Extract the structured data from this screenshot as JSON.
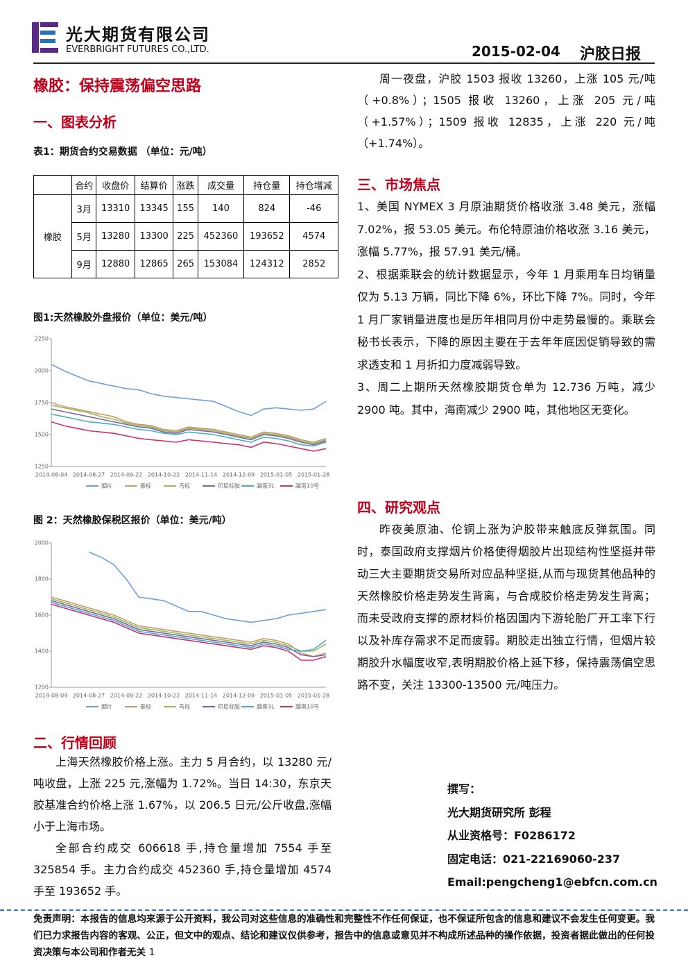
{
  "header": {
    "company_cn": "光大期货有限公司",
    "company_en": "EVERBRIGHT FUTURES CO.,LTD.",
    "date": "2015-02-04",
    "report": "沪胶日报"
  },
  "title": "橡胶：保持震荡偏空思路",
  "section1": {
    "heading": "一、图表分析",
    "table_caption": "表1：期货合约交易数据 （单位：元/吨）"
  },
  "table": {
    "columns": [
      "合约",
      "收盘价",
      "结算价",
      "涨跌",
      "成交量",
      "持仓量",
      "持仓增减"
    ],
    "group": "橡胶",
    "rows": [
      [
        "3月",
        13310,
        13345,
        155,
        140,
        824,
        -46
      ],
      [
        "5月",
        13280,
        13300,
        225,
        452360,
        193652,
        4574
      ],
      [
        "9月",
        12880,
        12865,
        265,
        153084,
        124312,
        2852
      ]
    ]
  },
  "chart_data": [
    {
      "type": "line",
      "title": "图1:天然橡胶外盘报价（单位：美元/吨）",
      "categories": [
        "2014-08-04",
        null,
        null,
        "2014-08-27",
        null,
        null,
        "2014-09-22",
        null,
        null,
        "2014-10-22",
        null,
        null,
        "2014-11-14",
        null,
        null,
        "2014-12-09",
        null,
        null,
        "2015-01-05",
        null,
        null,
        "2015-01-28",
        null
      ],
      "ylim": [
        1250,
        2250
      ],
      "yticks": [
        1250,
        1500,
        1750,
        2000,
        2250
      ],
      "series": [
        {
          "name": "烟片",
          "color": "#6f9fd8",
          "values": [
            2050,
            2000,
            1960,
            1920,
            1900,
            1880,
            1860,
            1850,
            1820,
            1800,
            1790,
            1780,
            1770,
            1760,
            1720,
            1680,
            1650,
            1700,
            1710,
            1700,
            1690,
            1700,
            1760
          ]
        },
        {
          "name": "泰标",
          "color": "#c89a6a",
          "values": [
            1750,
            1720,
            1700,
            1680,
            1660,
            1640,
            1600,
            1580,
            1570,
            1540,
            1530,
            1560,
            1550,
            1540,
            1520,
            1500,
            1480,
            1520,
            1510,
            1490,
            1460,
            1440,
            1470
          ]
        },
        {
          "name": "马标",
          "color": "#9bbb59",
          "values": [
            1730,
            1710,
            1690,
            1670,
            1640,
            1620,
            1590,
            1570,
            1560,
            1530,
            1520,
            1550,
            1540,
            1530,
            1510,
            1490,
            1470,
            1510,
            1500,
            1480,
            1450,
            1430,
            1460
          ]
        },
        {
          "name": "印尼标胶",
          "color": "#8064a2",
          "values": [
            1700,
            1680,
            1660,
            1640,
            1620,
            1600,
            1580,
            1560,
            1550,
            1520,
            1510,
            1540,
            1530,
            1520,
            1500,
            1480,
            1460,
            1500,
            1490,
            1470,
            1440,
            1420,
            1450
          ]
        },
        {
          "name": "越南3L",
          "color": "#4bacc6",
          "values": [
            1660,
            1640,
            1620,
            1600,
            1590,
            1580,
            1560,
            1540,
            1530,
            1510,
            1500,
            1520,
            1510,
            1500,
            1480,
            1460,
            1440,
            1480,
            1470,
            1450,
            1420,
            1410,
            1440
          ]
        },
        {
          "name": "越南10号",
          "color": "#d0306f",
          "values": [
            1600,
            1570,
            1550,
            1530,
            1520,
            1510,
            1490,
            1470,
            1460,
            1450,
            1440,
            1460,
            1450,
            1440,
            1430,
            1420,
            1400,
            1440,
            1430,
            1410,
            1390,
            1370,
            1390
          ]
        }
      ]
    },
    {
      "type": "line",
      "title": "图 2：天然橡胶保税区报价（单位：美元/吨）",
      "categories": [
        "2014-08-04",
        null,
        null,
        "2014-08-27",
        null,
        null,
        "2014-09-22",
        null,
        null,
        "2014-10-22",
        null,
        null,
        "2014-11-14",
        null,
        null,
        "2014-12-09",
        null,
        null,
        "2015-01-05",
        null,
        null,
        "2015-01-28",
        null
      ],
      "ylim": [
        1200,
        2000
      ],
      "yticks": [
        1200,
        1400,
        1600,
        1800,
        2000
      ],
      "series": [
        {
          "name": "烟片",
          "color": "#6f9fd8",
          "values": [
            null,
            null,
            null,
            1950,
            1920,
            1880,
            1800,
            1700,
            1690,
            1680,
            1650,
            1620,
            1620,
            1600,
            1580,
            1570,
            1560,
            1570,
            1580,
            1600,
            1610,
            1620,
            1630
          ]
        },
        {
          "name": "泰标",
          "color": "#c89a6a",
          "values": [
            1700,
            1680,
            1660,
            1640,
            1620,
            1600,
            1570,
            1540,
            1530,
            1520,
            1510,
            1500,
            1490,
            1480,
            1470,
            1460,
            1450,
            1470,
            1460,
            1440,
            1390,
            1370,
            1390
          ]
        },
        {
          "name": "马标",
          "color": "#9bbb59",
          "values": [
            1690,
            1670,
            1650,
            1630,
            1610,
            1590,
            1560,
            1530,
            1520,
            1510,
            1500,
            1490,
            1480,
            1470,
            1460,
            1450,
            1440,
            1460,
            1450,
            1430,
            1400,
            1400,
            1440
          ]
        },
        {
          "name": "印尼标胶",
          "color": "#8064a2",
          "values": [
            1680,
            1660,
            1640,
            1620,
            1600,
            1580,
            1550,
            1520,
            1510,
            1500,
            1490,
            1480,
            1470,
            1460,
            1450,
            1440,
            1430,
            1450,
            1440,
            1420,
            1380,
            1370,
            1380
          ]
        },
        {
          "name": "越南3L",
          "color": "#4bacc6",
          "values": [
            1670,
            1650,
            1630,
            1610,
            1590,
            1570,
            1540,
            1510,
            1500,
            1490,
            1480,
            1470,
            1460,
            1450,
            1440,
            1430,
            1420,
            1440,
            1430,
            1410,
            1400,
            1410,
            1460
          ]
        },
        {
          "name": "越南10号",
          "color": "#d0306f",
          "values": [
            1660,
            1640,
            1620,
            1600,
            1580,
            1560,
            1530,
            1500,
            1490,
            1480,
            1470,
            1460,
            1450,
            1440,
            1430,
            1420,
            1410,
            1430,
            1420,
            1400,
            1350,
            1350,
            1370
          ]
        }
      ]
    }
  ],
  "section2": {
    "heading": "二、行情回顾",
    "paragraphs": [
      "上海天然橡胶价格上涨。主力 5 月合约，以 13280 元/吨收盘，上涨 225 元,涨幅为 1.72%。当日 14:30，东京天胶基准合约价格上涨 1.67%，以 206.5 日元/公斤收盘,涨幅小于上海市场。",
      "全部合约成交 606618 手,持仓量增加 7554 手至 325854 手。主力合约成交 452360 手,持仓量增加 4574 手至 193652 手。"
    ]
  },
  "night": "周一夜盘，沪胶 1503 报收 13260，上涨 105 元/吨（+0.8%）；1505 报收 13260，上涨 205 元/吨（+1.57%）；1509 报收 12835，上涨 220 元/吨（+1.74%）。",
  "section3": {
    "heading": "三、市场焦点",
    "items": [
      "1、美国 NYMEX 3 月原油期货价格收涨 3.48 美元，涨幅 7.02%，报 53.05 美元。布伦特原油价格收涨 3.16 美元，涨幅 5.77%，报 57.91 美元/桶。",
      "2、根据乘联会的统计数据显示，今年 1 月乘用车日均销量仅为 5.13 万辆，同比下降 6%，环比下降 7%。同时，今年 1 月厂家销量进度也是历年相同月份中走势最慢的。乘联会秘书长表示，下降的原因主要在于去年年底因促销导致的需求透支和 1 月折扣力度减弱导致。",
      "3、周二上期所天然橡胶期货仓单为 12.736 万吨，减少 2900 吨。其中，海南减少 2900 吨，其他地区无变化。"
    ]
  },
  "section4": {
    "heading": "四、研究观点",
    "paragraphs": [
      "昨夜美原油、伦铜上涨为沪胶带来触底反弹氛围。同时，泰国政府支撑烟片价格使得烟胶片出现结构性坚挺并带动三大主要期货交易所对应品种坚挺,从而与现货其他品种的天然橡胶价格走势发生背离，与合成胶价格走势发生背离；而未受政府支撑的原材料价格因国内下游轮胎厂开工率下行以及补库存需求不足而疲弱。期胶走出独立行情，但烟片较期胶升水幅度收窄,表明期胶价格上延下移，保持震荡偏空思路不变，关注 13300-13500 元/吨压力。"
    ]
  },
  "author": {
    "label": "撰写：",
    "org": "光大期货研究所 彭程",
    "license": "从业资格号：F0286172",
    "phone": "固定电话：021-22169060-237",
    "email": "Email:pengcheng1@ebfcn.com.cn"
  },
  "footer": {
    "disclaimer": "免责声明：本报告的信息均来源于公开资料，我公司对这些信息的准确性和完整性不作任何保证，也不保证所包含的信息和建议不会发生任何变更。我们已力求报告内容的客观、公正，但文中的观点、结论和建议仅供参考，报告中的信息或意见并不构成所述品种的操作依据，投资者据此做出的任何投资决策与本公司和作者无关",
    "page": 1
  }
}
